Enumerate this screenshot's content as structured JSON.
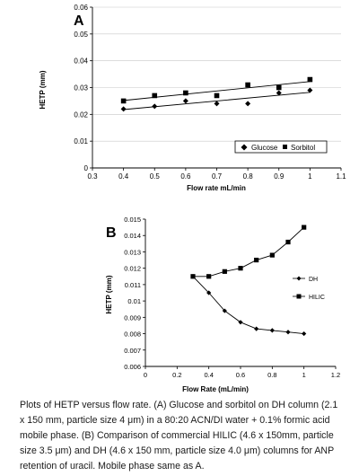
{
  "chart_data": [
    {
      "type": "scatter",
      "panel_label": "A",
      "title": "",
      "xlabel": "Flow rate mL/min",
      "ylabel": "HETP (mm)",
      "xlim": [
        0.3,
        1.1
      ],
      "ylim": [
        0,
        0.06
      ],
      "xticks": [
        "0.3",
        "0.4",
        "0.5",
        "0.6",
        "0.7",
        "0.8",
        "0.9",
        "1",
        "1.1"
      ],
      "yticks": [
        "0",
        "0.01",
        "0.02",
        "0.03",
        "0.04",
        "0.05",
        "0.06"
      ],
      "trendlines": true,
      "legend_position": "bottom-right",
      "series": [
        {
          "name": "Glucose",
          "marker": "diamond",
          "x": [
            0.4,
            0.5,
            0.6,
            0.7,
            0.8,
            0.9,
            1.0
          ],
          "y": [
            0.022,
            0.023,
            0.025,
            0.024,
            0.024,
            0.028,
            0.029
          ]
        },
        {
          "name": "Sorbitol",
          "marker": "square",
          "x": [
            0.4,
            0.5,
            0.6,
            0.7,
            0.8,
            0.9,
            1.0
          ],
          "y": [
            0.025,
            0.027,
            0.028,
            0.027,
            0.031,
            0.03,
            0.033
          ]
        }
      ]
    },
    {
      "type": "line",
      "panel_label": "B",
      "title": "",
      "xlabel": "Flow Rate (mL/min)",
      "ylabel": "HETP (mm)",
      "xlim": [
        0,
        1.2
      ],
      "ylim": [
        0.006,
        0.015
      ],
      "xticks": [
        "0",
        "0.2",
        "0.4",
        "0.6",
        "0.8",
        "1",
        "1.2"
      ],
      "yticks": [
        "0.006",
        "0.007",
        "0.008",
        "0.009",
        "0.01",
        "0.011",
        "0.012",
        "0.013",
        "0.014",
        "0.015"
      ],
      "legend_position": "right",
      "series": [
        {
          "name": "DH",
          "marker": "diamond",
          "x": [
            0.3,
            0.4,
            0.5,
            0.6,
            0.7,
            0.8,
            0.9,
            1.0
          ],
          "y": [
            0.0115,
            0.0105,
            0.0094,
            0.0087,
            0.0083,
            0.0082,
            0.0081,
            0.008
          ]
        },
        {
          "name": "HILIC",
          "marker": "square",
          "x": [
            0.3,
            0.4,
            0.5,
            0.6,
            0.7,
            0.8,
            0.9,
            1.0
          ],
          "y": [
            0.0115,
            0.0115,
            0.0118,
            0.012,
            0.0125,
            0.0128,
            0.0136,
            0.0145
          ]
        }
      ]
    }
  ],
  "caption": "Plots of HETP versus flow rate. (A) Glucose and sorbitol on DH column (2.1 x 150 mm, particle size 4 μm) in a 80:20 ACN/DI water + 0.1% formic acid mobile phase. (B) Comparison of commercial HILIC (4.6 x 150mm, particle size 3.5 μm) and DH (4.6 x 150 mm, particle size 4.0 μm) columns for ANP retention of uracil. Mobile phase same as A."
}
